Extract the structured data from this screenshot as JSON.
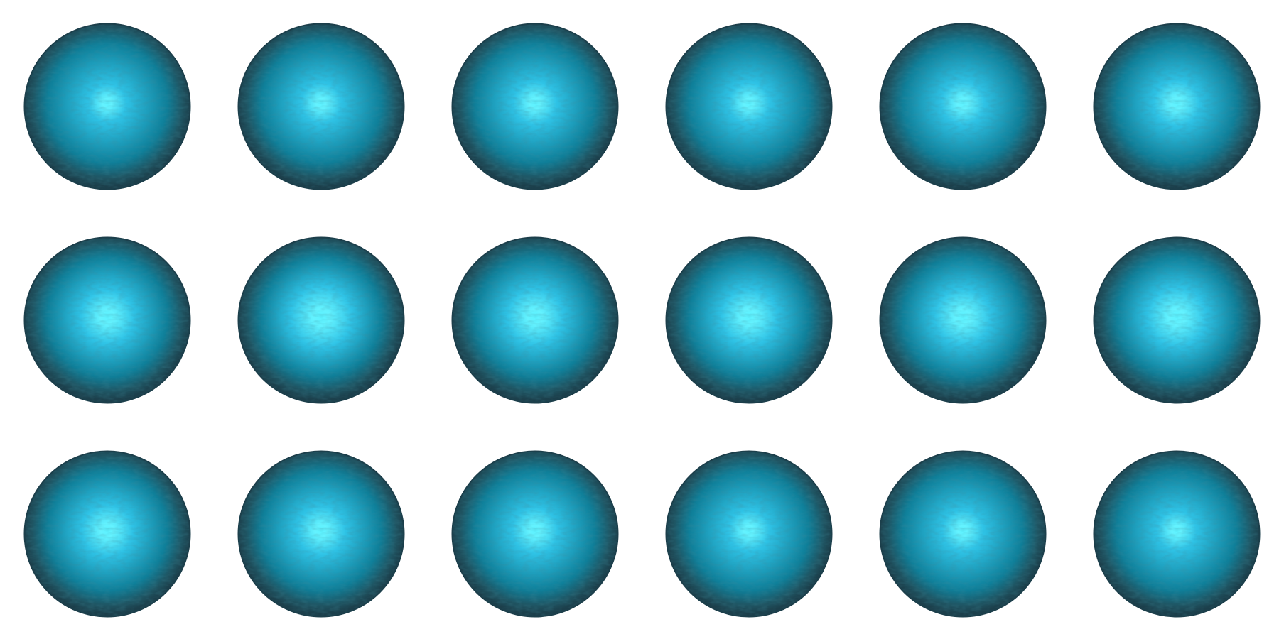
{
  "grid": {
    "rows": 3,
    "columns": 6,
    "item_icon": "glowing-orb",
    "background_color": "#ffffff"
  },
  "orb_colors": {
    "rim": "#1c3f4b",
    "outer": "#1f5563",
    "body": "#0f7f99",
    "glow": "#2fc3e6",
    "core": "#5cf2ff"
  },
  "orbs": [
    {
      "intensity": 0.55
    },
    {
      "intensity": 0.6
    },
    {
      "intensity": 0.65
    },
    {
      "intensity": 0.62
    },
    {
      "intensity": 0.65
    },
    {
      "intensity": 0.7
    },
    {
      "intensity": 0.85
    },
    {
      "intensity": 1.0
    },
    {
      "intensity": 0.9
    },
    {
      "intensity": 0.9
    },
    {
      "intensity": 0.9
    },
    {
      "intensity": 0.95
    },
    {
      "intensity": 0.8
    },
    {
      "intensity": 0.75
    },
    {
      "intensity": 0.7
    },
    {
      "intensity": 0.62
    },
    {
      "intensity": 0.62
    },
    {
      "intensity": 0.58
    }
  ]
}
